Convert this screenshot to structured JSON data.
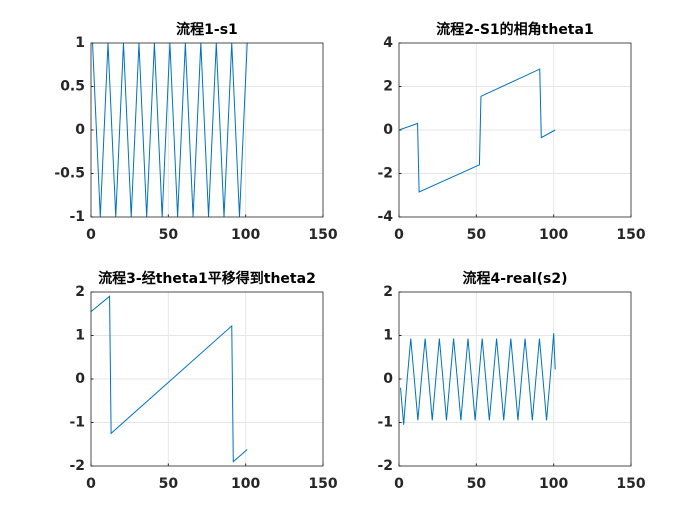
{
  "chart_data": [
    {
      "type": "line",
      "title": "流程1-s1",
      "color": "#0072bd",
      "grid": true,
      "xlim": [
        0,
        150
      ],
      "xticks": [
        0,
        50,
        100,
        150
      ],
      "ylim": [
        -1,
        1
      ],
      "yticks": [
        -1,
        -0.5,
        0,
        0.5,
        1
      ],
      "x": [
        1,
        3.5,
        6,
        8.5,
        11,
        13.5,
        16,
        18.5,
        21,
        23.5,
        26,
        28.5,
        31,
        33.5,
        36,
        38.5,
        41,
        43.5,
        46,
        48.5,
        51,
        53.5,
        56,
        58.5,
        61,
        63.5,
        66,
        68.5,
        71,
        73.5,
        76,
        78.5,
        81,
        83.5,
        86,
        88.5,
        91,
        93.5,
        96,
        98.5,
        101
      ],
      "values": [
        1,
        0,
        -1,
        0,
        1,
        0,
        -1,
        0,
        1,
        0,
        -1,
        0,
        1,
        0,
        -1,
        0,
        1,
        0,
        -1,
        0,
        1,
        0,
        -1,
        0,
        1,
        0,
        -1,
        0,
        1,
        0,
        -1,
        0,
        1,
        0,
        -1,
        0,
        1,
        0,
        -1,
        0,
        1
      ]
    },
    {
      "type": "line",
      "title": "流程2-S1的相角theta1",
      "color": "#0072bd",
      "grid": true,
      "xlim": [
        0,
        150
      ],
      "xticks": [
        0,
        50,
        100,
        150
      ],
      "ylim": [
        -4,
        4
      ],
      "yticks": [
        -4,
        -2,
        0,
        2,
        4
      ],
      "x": [
        0,
        12,
        13,
        52,
        53,
        91,
        92,
        101
      ],
      "values": [
        0,
        0.3,
        -2.85,
        -1.6,
        1.55,
        2.8,
        -0.35,
        0
      ]
    },
    {
      "type": "line",
      "title": "流程3-经theta1平移得到theta2",
      "color": "#0072bd",
      "grid": true,
      "xlim": [
        0,
        150
      ],
      "xticks": [
        0,
        50,
        100,
        150
      ],
      "ylim": [
        -2,
        2
      ],
      "yticks": [
        -2,
        -1,
        0,
        1,
        2
      ],
      "x": [
        0,
        12,
        13,
        91,
        92,
        101
      ],
      "values": [
        1.55,
        1.9,
        -1.25,
        1.22,
        -1.9,
        -1.62
      ]
    },
    {
      "type": "line",
      "title": "流程4-real(s2)",
      "color": "#0072bd",
      "grid": true,
      "xlim": [
        0,
        150
      ],
      "xticks": [
        0,
        50,
        100,
        150
      ],
      "ylim": [
        -2,
        2
      ],
      "yticks": [
        -2,
        -1,
        0,
        1,
        2
      ],
      "x": [
        1,
        3,
        5.3,
        7.6,
        9.9,
        12.2,
        14.5,
        16.9,
        19.2,
        21.5,
        23.8,
        26.1,
        28.4,
        30.7,
        33,
        35.3,
        37.7,
        40,
        42.3,
        44.6,
        46.9,
        49.2,
        51.5,
        53.8,
        56.1,
        58.4,
        60.8,
        63.1,
        65.4,
        67.7,
        70,
        72.3,
        74.6,
        76.9,
        79.2,
        81.5,
        83.9,
        86.2,
        88.5,
        90.8,
        93.1,
        95.4,
        97.7,
        100,
        101
      ],
      "values": [
        -0.2,
        -1.05,
        0,
        0.93,
        0,
        -0.95,
        0,
        0.93,
        0,
        -0.95,
        0,
        0.93,
        0,
        -0.95,
        0,
        0.93,
        0,
        -0.95,
        0,
        0.93,
        0,
        -0.95,
        0,
        0.93,
        0,
        -0.95,
        0,
        0.93,
        0,
        -0.95,
        0,
        0.93,
        0,
        -0.95,
        0,
        0.93,
        0,
        -0.95,
        0,
        0.93,
        0,
        -0.95,
        0,
        1.05,
        0.22
      ]
    }
  ]
}
